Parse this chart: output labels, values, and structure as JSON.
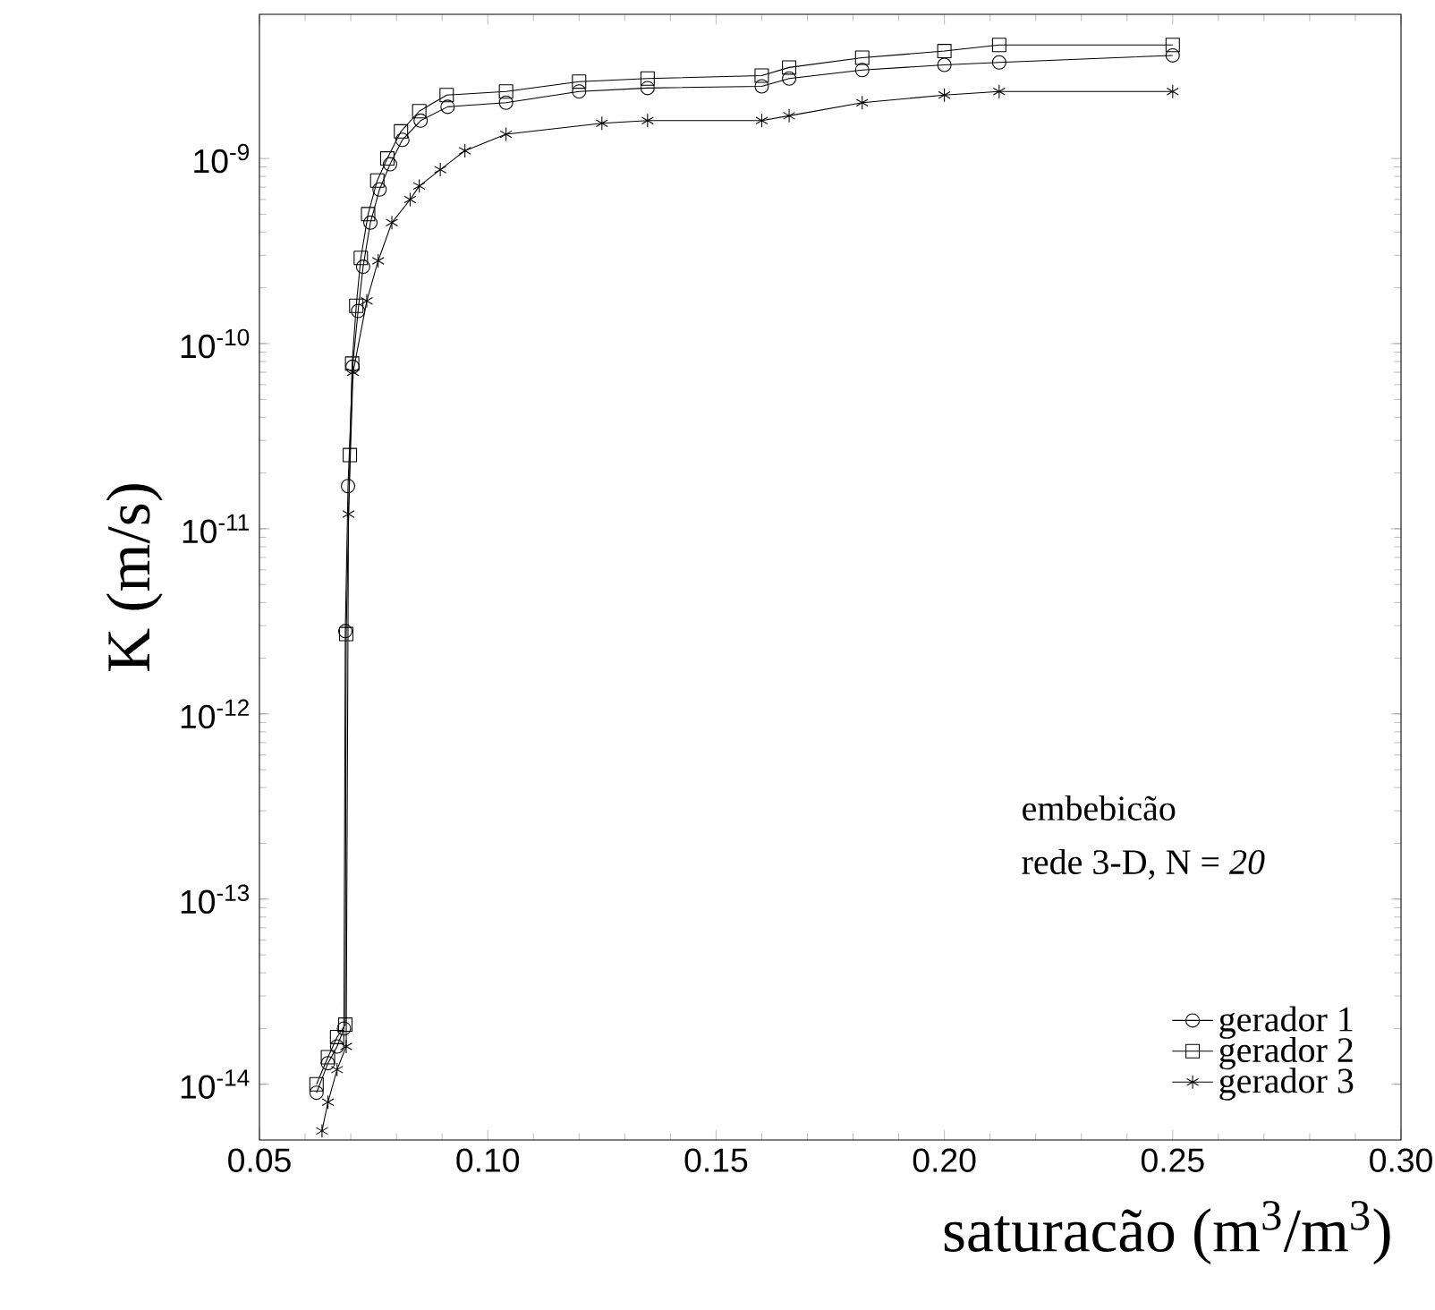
{
  "chart_data": {
    "type": "line",
    "xlabel": "saturacão (m$^{3}$/m$^{3}$)",
    "ylabel": "K (m/s)",
    "annotations": [
      "embebicão",
      "rede 3-D, N = *20*"
    ],
    "log": "y",
    "legend": "bottom right",
    "grid": false,
    "xlim": [
      0.05,
      0.3
    ],
    "ylim": [
      5e-15,
      6e-09
    ],
    "xticks": [
      {
        "value": 0.05,
        "label": "0.05"
      },
      {
        "value": 0.1,
        "label": "0.10"
      },
      {
        "value": 0.15,
        "label": "0.15"
      },
      {
        "value": 0.2,
        "label": "0.20"
      },
      {
        "value": 0.25,
        "label": "0.25"
      },
      {
        "value": 0.3,
        "label": "0.30"
      }
    ],
    "yticks": [
      {
        "value": 1e-14,
        "label": "10$^{-14}$"
      },
      {
        "value": 1e-13,
        "label": "10$^{-13}$"
      },
      {
        "value": 1e-12,
        "label": "10$^{-12}$"
      },
      {
        "value": 1e-11,
        "label": "10$^{-11}$"
      },
      {
        "value": 1e-10,
        "label": "10$^{-10}$"
      },
      {
        "value": 1e-09,
        "label": "10$^{-9}$"
      }
    ],
    "series": [
      {
        "name": "gerador 1",
        "color": "#000000",
        "marker": "circle",
        "x": [
          0.0625,
          0.065,
          0.067,
          0.0685,
          0.0688,
          0.0694,
          0.0704,
          0.0716,
          0.0727,
          0.0743,
          0.0763,
          0.0786,
          0.0813,
          0.0853,
          0.0912,
          0.104,
          0.12,
          0.135,
          0.16,
          0.166,
          0.182,
          0.2,
          0.212,
          0.25
        ],
        "values": [
          9e-15,
          1.3e-14,
          1.6e-14,
          2e-14,
          2.8e-12,
          1.7e-11,
          7.5e-11,
          1.5e-10,
          2.6e-10,
          4.5e-10,
          6.8e-10,
          9.3e-10,
          1.26e-09,
          1.6e-09,
          1.9e-09,
          2e-09,
          2.3e-09,
          2.4e-09,
          2.45e-09,
          2.7e-09,
          3e-09,
          3.2e-09,
          3.3e-09,
          3.6e-09
        ]
      },
      {
        "name": "gerador 2",
        "color": "#000000",
        "marker": "square",
        "x": [
          0.0625,
          0.065,
          0.067,
          0.0688,
          0.069,
          0.0698,
          0.0703,
          0.0712,
          0.0722,
          0.0738,
          0.0758,
          0.078,
          0.081,
          0.085,
          0.091,
          0.104,
          0.12,
          0.135,
          0.16,
          0.166,
          0.182,
          0.2,
          0.212,
          0.25
        ],
        "values": [
          1e-14,
          1.4e-14,
          1.8e-14,
          2.1e-14,
          2.7e-12,
          2.5e-11,
          7.8e-11,
          1.6e-10,
          2.9e-10,
          5e-10,
          7.6e-10,
          1e-09,
          1.4e-09,
          1.8e-09,
          2.2e-09,
          2.3e-09,
          2.6e-09,
          2.7e-09,
          2.8e-09,
          3.1e-09,
          3.5e-09,
          3.8e-09,
          4.1e-09,
          4.1e-09
        ]
      },
      {
        "name": "gerador 3",
        "color": "#000000",
        "marker": "cross",
        "x": [
          0.0637,
          0.065,
          0.067,
          0.069,
          0.0695,
          0.0705,
          0.0735,
          0.076,
          0.079,
          0.083,
          0.085,
          0.0896,
          0.095,
          0.104,
          0.125,
          0.135,
          0.16,
          0.166,
          0.182,
          0.2,
          0.212,
          0.25
        ],
        "values": [
          5.6e-15,
          8e-15,
          1.2e-14,
          1.6e-14,
          1.2e-11,
          7e-11,
          1.7e-10,
          2.8e-10,
          4.5e-10,
          6e-10,
          7.1e-10,
          8.7e-10,
          1.1e-09,
          1.35e-09,
          1.55e-09,
          1.6e-09,
          1.6e-09,
          1.7e-09,
          2e-09,
          2.2e-09,
          2.3e-09,
          2.3e-09
        ]
      }
    ]
  }
}
